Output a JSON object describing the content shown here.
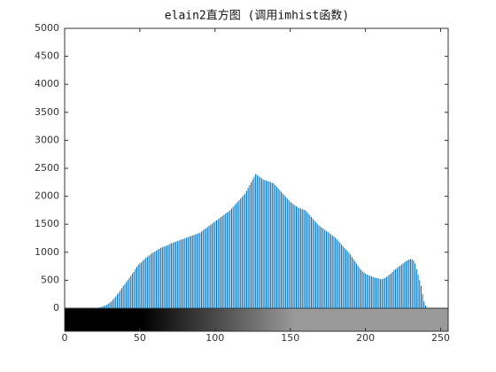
{
  "chart_data": {
    "type": "stem",
    "title": "elain2直方图 (调用imhist函数)",
    "color": "#0072bd",
    "xlim": [
      0,
      255
    ],
    "xticks": [
      0,
      50,
      100,
      150,
      200,
      250
    ],
    "ylim": [
      0,
      5000
    ],
    "yticks": [
      0,
      500,
      1000,
      1500,
      2000,
      2500,
      3000,
      3500,
      4000,
      4500,
      5000
    ],
    "values": [
      0,
      0,
      0,
      0,
      0,
      0,
      0,
      0,
      0,
      0,
      0,
      0,
      0,
      0,
      0,
      0,
      0,
      0,
      0,
      0,
      5,
      8,
      10,
      15,
      20,
      30,
      40,
      50,
      60,
      80,
      100,
      120,
      150,
      180,
      210,
      250,
      280,
      320,
      360,
      400,
      430,
      470,
      500,
      540,
      580,
      620,
      650,
      700,
      740,
      780,
      800,
      820,
      850,
      870,
      900,
      920,
      940,
      960,
      980,
      1000,
      1010,
      1030,
      1050,
      1060,
      1080,
      1090,
      1100,
      1110,
      1120,
      1130,
      1150,
      1160,
      1170,
      1180,
      1190,
      1200,
      1210,
      1220,
      1230,
      1240,
      1250,
      1260,
      1270,
      1280,
      1290,
      1300,
      1310,
      1320,
      1330,
      1340,
      1350,
      1370,
      1390,
      1410,
      1430,
      1450,
      1470,
      1490,
      1510,
      1530,
      1550,
      1570,
      1590,
      1610,
      1630,
      1650,
      1670,
      1690,
      1710,
      1730,
      1750,
      1780,
      1810,
      1840,
      1870,
      1900,
      1930,
      1960,
      1990,
      2020,
      2050,
      2100,
      2150,
      2200,
      2250,
      2300,
      2350,
      2400,
      2380,
      2360,
      2340,
      2320,
      2300,
      2290,
      2280,
      2270,
      2260,
      2250,
      2240,
      2230,
      2200,
      2170,
      2140,
      2110,
      2080,
      2050,
      2020,
      1990,
      1960,
      1930,
      1900,
      1880,
      1860,
      1840,
      1820,
      1800,
      1790,
      1780,
      1770,
      1760,
      1750,
      1720,
      1690,
      1660,
      1630,
      1600,
      1570,
      1540,
      1510,
      1480,
      1460,
      1440,
      1420,
      1400,
      1380,
      1360,
      1340,
      1320,
      1300,
      1280,
      1260,
      1230,
      1200,
      1170,
      1140,
      1110,
      1080,
      1050,
      1020,
      990,
      960,
      920,
      880,
      840,
      800,
      760,
      720,
      690,
      660,
      640,
      620,
      600,
      590,
      580,
      570,
      560,
      550,
      540,
      540,
      530,
      520,
      520,
      530,
      540,
      560,
      580,
      600,
      620,
      650,
      680,
      700,
      720,
      740,
      760,
      780,
      800,
      820,
      840,
      860,
      870,
      880,
      870,
      850,
      800,
      700,
      600,
      500,
      400,
      250,
      120,
      50,
      0,
      0,
      0,
      0,
      0,
      0,
      0,
      0,
      0,
      0,
      0,
      0,
      0,
      0,
      0
    ]
  }
}
